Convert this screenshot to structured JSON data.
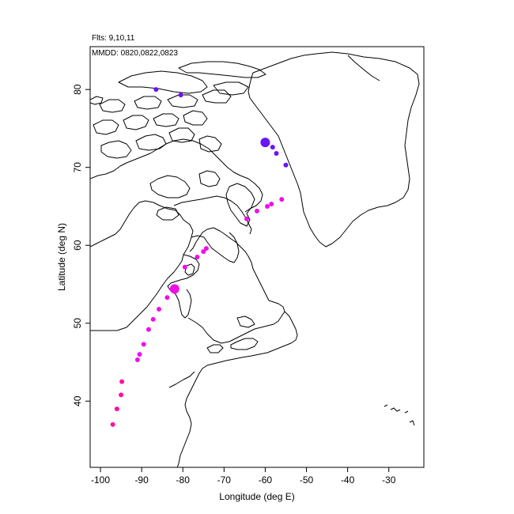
{
  "header": {
    "flights": "Flts: 9,10,11",
    "dates": "MMDD: 0820,0822,0823"
  },
  "chart_data": {
    "type": "scatter",
    "xlabel": "Longitude (deg E)",
    "ylabel": "Latitude (deg N)",
    "xlim": [
      -102.5,
      -21.5
    ],
    "ylim": [
      31.5,
      85.5
    ],
    "xticks": [
      -100,
      -90,
      -80,
      -70,
      -60,
      -50,
      -40,
      -30
    ],
    "yticks": [
      40,
      50,
      60,
      70,
      80
    ],
    "xtick_labels": [
      "-100",
      "-90",
      "-80",
      "-70",
      "-60",
      "-50",
      "-40",
      "-30"
    ],
    "ytick_labels": [
      "40",
      "50",
      "60",
      "70",
      "80"
    ],
    "grid": false,
    "basemap": "coastlines (North America / Greenland)",
    "series": [
      {
        "color": "#ff10a0",
        "points": [
          {
            "lon": -97.0,
            "lat": 37.0,
            "size": "small"
          },
          {
            "lon": -96.0,
            "lat": 39.0,
            "size": "small"
          },
          {
            "lon": -95.0,
            "lat": 40.8,
            "size": "small"
          },
          {
            "lon": -94.8,
            "lat": 42.5,
            "size": "small"
          }
        ]
      },
      {
        "color": "#ee10e8",
        "points": [
          {
            "lon": -91.0,
            "lat": 45.3,
            "size": "small"
          },
          {
            "lon": -90.5,
            "lat": 46.0,
            "size": "small"
          },
          {
            "lon": -89.5,
            "lat": 47.3,
            "size": "small"
          },
          {
            "lon": -88.3,
            "lat": 49.2,
            "size": "small"
          },
          {
            "lon": -87.2,
            "lat": 50.5,
            "size": "small"
          },
          {
            "lon": -85.8,
            "lat": 51.8,
            "size": "small"
          },
          {
            "lon": -83.8,
            "lat": 53.3,
            "size": "small"
          },
          {
            "lon": -82.0,
            "lat": 54.4,
            "size": "large"
          },
          {
            "lon": -79.5,
            "lat": 57.2,
            "size": "small"
          },
          {
            "lon": -76.5,
            "lat": 58.5,
            "size": "small"
          },
          {
            "lon": -75.0,
            "lat": 59.2,
            "size": "small"
          },
          {
            "lon": -74.3,
            "lat": 59.6,
            "size": "small"
          },
          {
            "lon": -64.5,
            "lat": 63.4,
            "size": "small"
          },
          {
            "lon": -62.0,
            "lat": 64.4,
            "size": "small"
          },
          {
            "lon": -59.5,
            "lat": 65.0,
            "size": "small"
          },
          {
            "lon": -58.5,
            "lat": 65.3,
            "size": "small"
          },
          {
            "lon": -56.0,
            "lat": 65.9,
            "size": "small"
          }
        ]
      },
      {
        "color": "#6a14f8",
        "points": [
          {
            "lon": -86.5,
            "lat": 80.0,
            "size": "small"
          },
          {
            "lon": -80.5,
            "lat": 79.3,
            "size": "small"
          },
          {
            "lon": -60.0,
            "lat": 73.2,
            "size": "large"
          },
          {
            "lon": -58.2,
            "lat": 72.6,
            "size": "small"
          },
          {
            "lon": -57.3,
            "lat": 71.8,
            "size": "small"
          },
          {
            "lon": -55.0,
            "lat": 70.3,
            "size": "small"
          }
        ]
      }
    ]
  }
}
